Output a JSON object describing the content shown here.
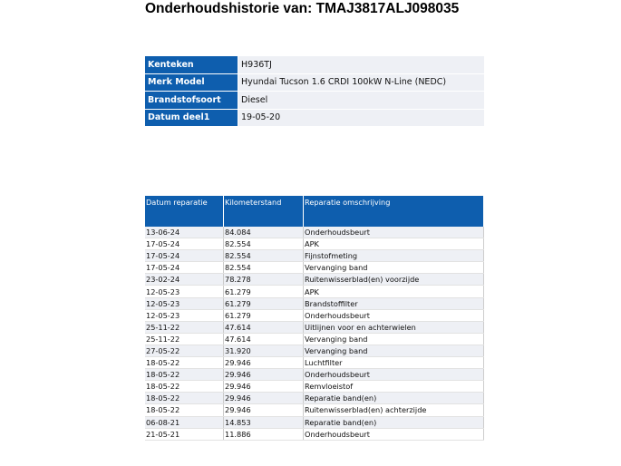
{
  "title": "Onderhoudshistorie van: TMAJ3817ALJ098035",
  "info": [
    {
      "label": "Kenteken",
      "value": "H936TJ"
    },
    {
      "label": "Merk Model",
      "value": "Hyundai Tucson 1.6 CRDI 100kW N-Line (NEDC)"
    },
    {
      "label": "Brandstofsoort",
      "value": "Diesel"
    },
    {
      "label": "Datum deel1",
      "value": "19-05-20"
    }
  ],
  "history": {
    "headers": [
      "Datum reparatie",
      "Kilometerstand",
      "Reparatie omschrijving"
    ],
    "rows": [
      [
        "13-06-24",
        "84.084",
        "Onderhoudsbeurt"
      ],
      [
        "17-05-24",
        "82.554",
        "APK"
      ],
      [
        "17-05-24",
        "82.554",
        "Fijnstofmeting"
      ],
      [
        "17-05-24",
        "82.554",
        "Vervanging band"
      ],
      [
        "23-02-24",
        "78.278",
        "Ruitenwisserblad(en) voorzijde"
      ],
      [
        "12-05-23",
        "61.279",
        "APK"
      ],
      [
        "12-05-23",
        "61.279",
        "Brandstoffilter"
      ],
      [
        "12-05-23",
        "61.279",
        "Onderhoudsbeurt"
      ],
      [
        "25-11-22",
        "47.614",
        "Uitlijnen voor en achterwielen"
      ],
      [
        "25-11-22",
        "47.614",
        "Vervanging band"
      ],
      [
        "27-05-22",
        "31.920",
        "Vervanging band"
      ],
      [
        "18-05-22",
        "29.946",
        "Luchtfilter"
      ],
      [
        "18-05-22",
        "29.946",
        "Onderhoudsbeurt"
      ],
      [
        "18-05-22",
        "29.946",
        "Remvloeistof"
      ],
      [
        "18-05-22",
        "29.946",
        "Reparatie band(en)"
      ],
      [
        "18-05-22",
        "29.946",
        "Ruitenwisserblad(en) achterzijde"
      ],
      [
        "06-08-21",
        "14.853",
        "Reparatie band(en)"
      ],
      [
        "21-05-21",
        "11.886",
        "Onderhoudsbeurt"
      ]
    ]
  },
  "colors": {
    "header_blue": "#0e5eae",
    "stripe": "#eef0f5"
  }
}
